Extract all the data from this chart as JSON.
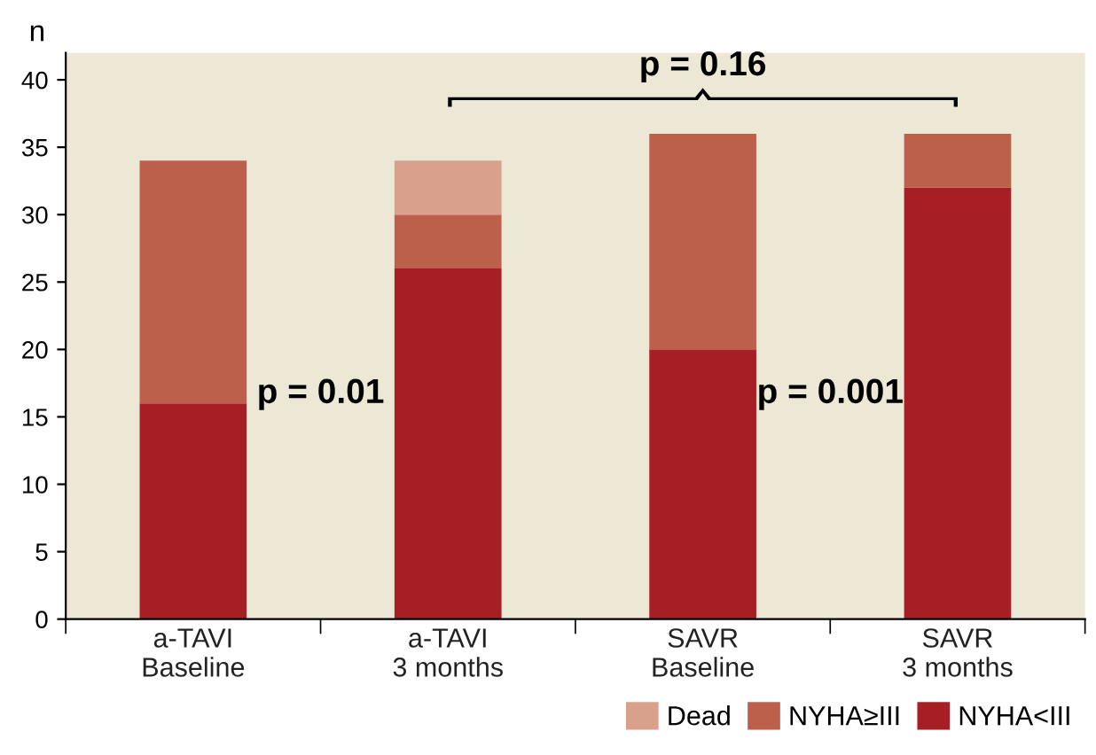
{
  "chart_data": {
    "type": "bar",
    "stacked": true,
    "ylabel": "n",
    "categories": [
      "a-TAVI\nBaseline",
      "a-TAVI\n3 months",
      "SAVR\nBaseline",
      "SAVR\n3 months"
    ],
    "series": [
      {
        "name": "NYHA<III",
        "color": "#a61f24",
        "values": [
          16,
          26,
          20,
          32
        ]
      },
      {
        "name": "NYHA≥III",
        "color": "#bd604b",
        "values": [
          18,
          4,
          16,
          4
        ]
      },
      {
        "name": "Dead",
        "color": "#d9a08b",
        "values": [
          null,
          4,
          null,
          null
        ]
      }
    ],
    "ylim": [
      0,
      42
    ],
    "yticks": [
      0,
      5,
      10,
      15,
      20,
      25,
      30,
      35,
      40
    ],
    "grid": false,
    "legend": "bottom right",
    "annotations": [
      "p = 0.01",
      "p = 0.001",
      "p = 0.16"
    ]
  }
}
